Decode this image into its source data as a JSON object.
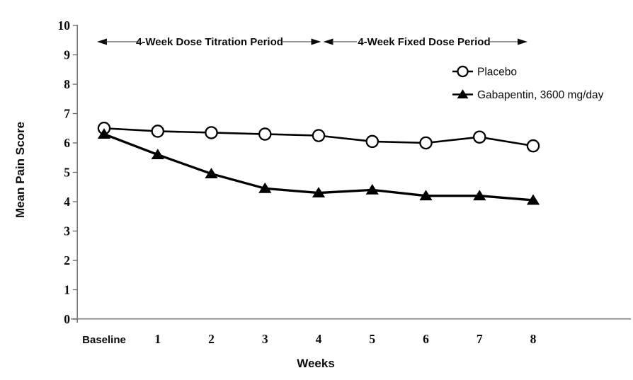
{
  "chart_data": {
    "type": "line",
    "title": "",
    "xlabel": "Weeks",
    "ylabel": "Mean Pain Score",
    "categories": [
      "Baseline",
      "1",
      "2",
      "3",
      "4",
      "5",
      "6",
      "7",
      "8"
    ],
    "series": [
      {
        "name": "Placebo",
        "marker": "open-circle",
        "color": "#000000",
        "values": [
          6.5,
          6.4,
          6.35,
          6.3,
          6.25,
          6.05,
          6.0,
          6.2,
          5.9
        ]
      },
      {
        "name": "Gabapentin, 3600 mg/day",
        "marker": "filled-triangle",
        "color": "#000000",
        "values": [
          6.3,
          5.6,
          4.95,
          4.45,
          4.3,
          4.4,
          4.2,
          4.2,
          4.05
        ]
      }
    ],
    "ylim": [
      0,
      10
    ],
    "yticks": [
      0,
      1,
      2,
      3,
      4,
      5,
      6,
      7,
      8,
      9,
      10
    ],
    "grid": false,
    "legend_position": "upper right",
    "annotations": [
      {
        "text": "4-Week Dose Titration Period",
        "x_start": "Baseline",
        "x_end": "4"
      },
      {
        "text": "4-Week Fixed Dose Period",
        "x_start": "4",
        "x_end": "8"
      }
    ],
    "colors": {
      "line": "#000000",
      "axis": "#777777",
      "background": "#ffffff"
    }
  }
}
